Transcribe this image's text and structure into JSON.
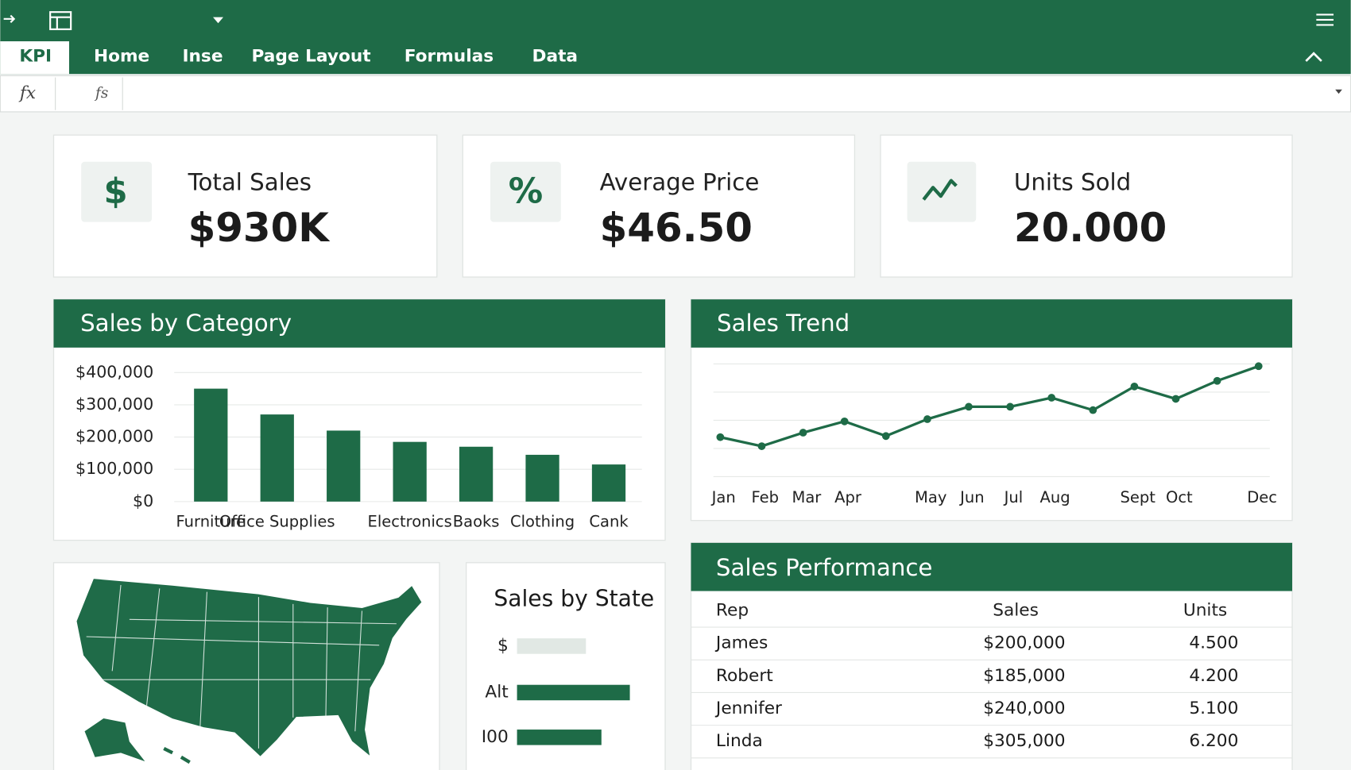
{
  "ribbon": {
    "tabs": [
      "KPI",
      "Home",
      "Inse",
      "Page Layout",
      "Formulas",
      "Data"
    ],
    "formula_bar": {
      "name_box": "fx",
      "function_icon": "fs"
    }
  },
  "kpis": [
    {
      "icon": "$",
      "label": "Total Sales",
      "value": "$930K"
    },
    {
      "icon": "%",
      "label": "Average Price",
      "value": "$46.50"
    },
    {
      "label": "Units Sold",
      "value": "20.000"
    }
  ],
  "chart_data": [
    {
      "type": "bar",
      "title": "Sales by Category",
      "color": "#1e6b47",
      "categories": [
        "Furniture",
        "Office Supplies",
        null,
        "Electronics",
        "Baoks",
        "Clothing",
        "Cank"
      ],
      "values": [
        350000,
        270000,
        220000,
        185000,
        170000,
        145000,
        115000
      ],
      "ylim": [
        0,
        400000
      ],
      "yticks": [
        {
          "value": 0,
          "label": "$0"
        },
        {
          "value": 100000,
          "label": "$100,000"
        },
        {
          "value": 200000,
          "label": "$200,000"
        },
        {
          "value": 300000,
          "label": "$300,000"
        },
        {
          "value": 400000,
          "label": "$400,000"
        }
      ],
      "grid": true
    },
    {
      "type": "line",
      "title": "Sales Trend",
      "color": "#1e6b47",
      "categories": [
        "Jan",
        "Feb",
        "Mar",
        "Apr",
        null,
        "May",
        "Jun",
        "Jul",
        "Aug",
        null,
        "Sept",
        "Oct",
        null,
        "Dec"
      ],
      "values": [
        35,
        27,
        39,
        49,
        36,
        51,
        62,
        62,
        70,
        59,
        80,
        69,
        85,
        98
      ],
      "ylim": [
        0,
        100
      ],
      "grid": true
    },
    {
      "type": "hbar",
      "title": "Sales by State",
      "categories": [
        "$",
        "Alt",
        "I00"
      ],
      "values": [
        80,
        131,
        98
      ],
      "colors": [
        "#e1e8e4",
        "#1e6b47",
        "#1e6b47"
      ],
      "xlim": [
        0,
        140
      ]
    }
  ],
  "table": {
    "title": "Sales Performance",
    "columns": [
      "Rep",
      "Sales",
      "Units"
    ],
    "rows": [
      [
        "James",
        "$200,000",
        "4.500"
      ],
      [
        "Robert",
        "$185,000",
        "4.200"
      ],
      [
        "Jennifer",
        "$240,000",
        "5.100"
      ],
      [
        "Linda",
        "$305,000",
        "6.200"
      ]
    ]
  }
}
